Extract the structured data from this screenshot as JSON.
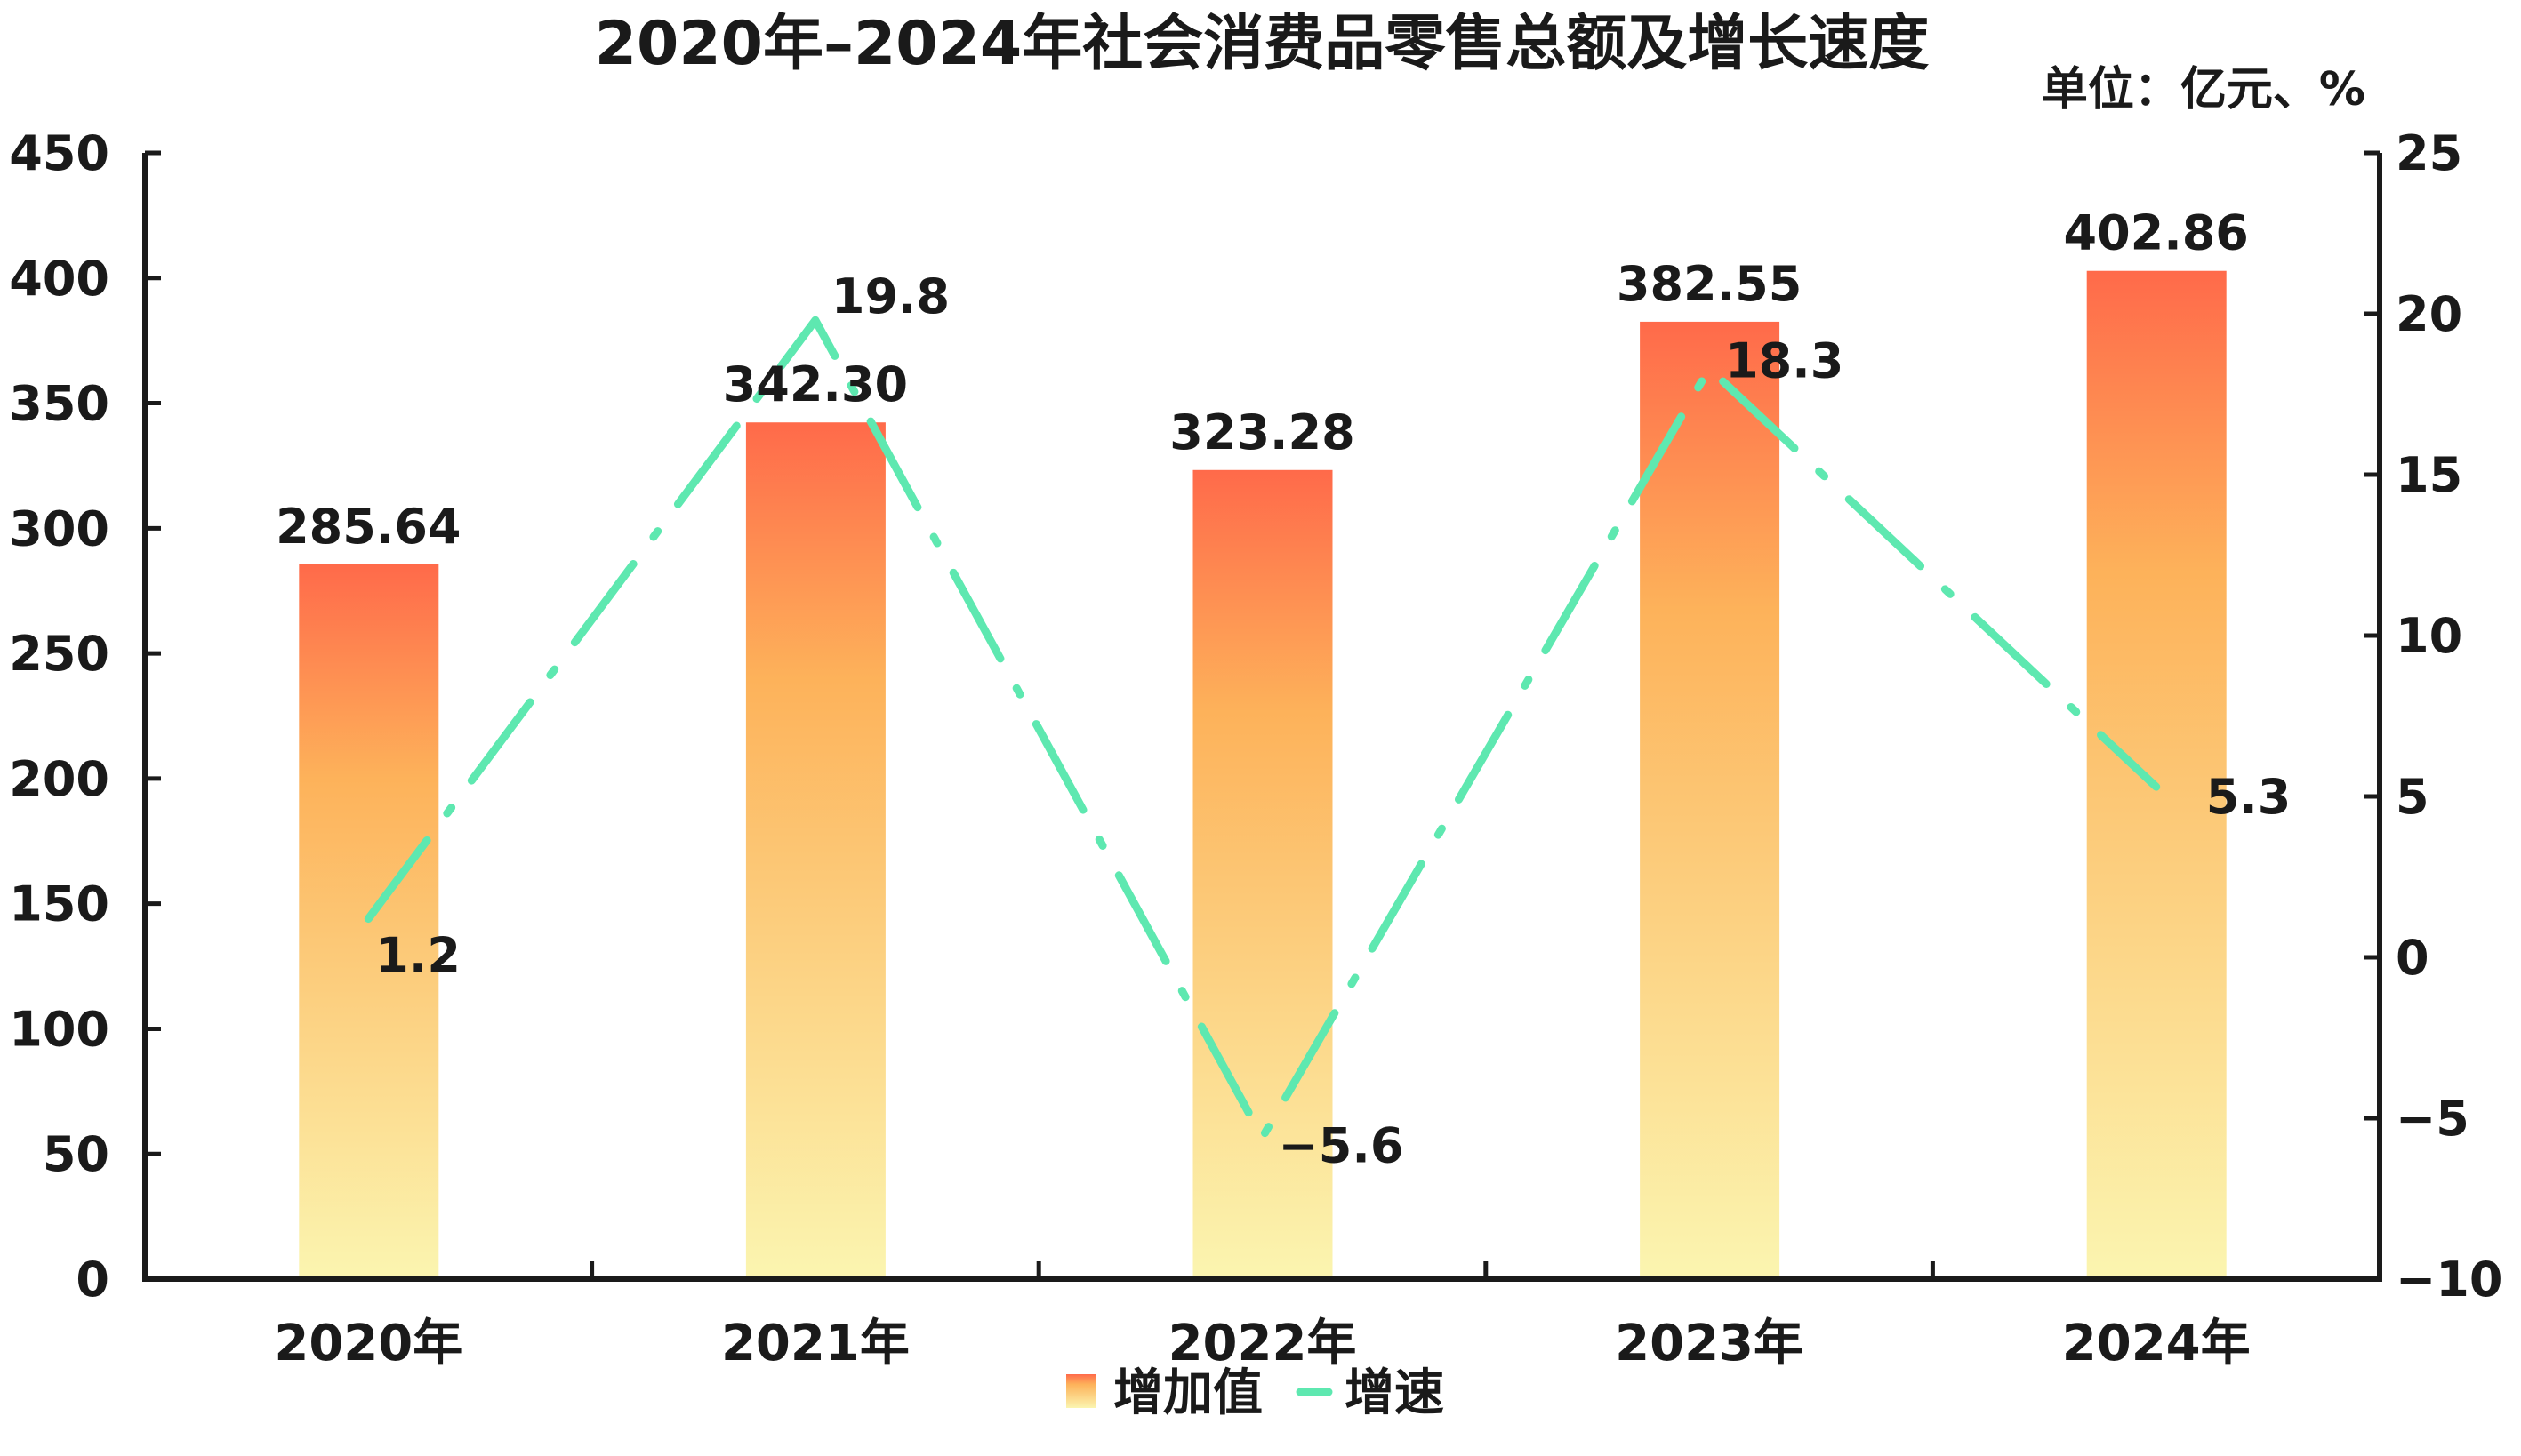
{
  "chart_data": {
    "type": "bar",
    "title": "2020年–2024年社会消费品零售总额及增长速度",
    "unit_label": "单位：亿元、%",
    "categories": [
      "2020年",
      "2021年",
      "2022年",
      "2023年",
      "2024年"
    ],
    "series": [
      {
        "name": "增加值",
        "type": "bar",
        "axis": "left",
        "values": [
          285.64,
          342.3,
          323.28,
          382.55,
          402.86
        ],
        "labels": [
          "285.64",
          "342.30",
          "323.28",
          "382.55",
          "402.86"
        ]
      },
      {
        "name": "增速",
        "type": "line",
        "axis": "right",
        "values": [
          1.2,
          19.8,
          -5.6,
          18.3,
          5.3
        ],
        "labels": [
          "1.2",
          "19.8",
          "−5.6",
          "18.3",
          "5.3"
        ]
      }
    ],
    "left_axis": {
      "range": [
        0,
        450
      ],
      "ticks": [
        "0",
        "50",
        "100",
        "150",
        "200",
        "250",
        "300",
        "350",
        "400",
        "450"
      ]
    },
    "right_axis": {
      "range": [
        -10,
        25
      ],
      "ticks": [
        "−10",
        "−5",
        "0",
        "5",
        "10",
        "15",
        "20",
        "25"
      ]
    },
    "legend_position": "bottom",
    "grid": false,
    "colors": {
      "bar_top": "#ff6a4a",
      "bar_mid": "#fdb25a",
      "bar_bottom": "#fbf5b0",
      "line": "#5ee8b0",
      "axis": "#1a1a1a"
    }
  }
}
